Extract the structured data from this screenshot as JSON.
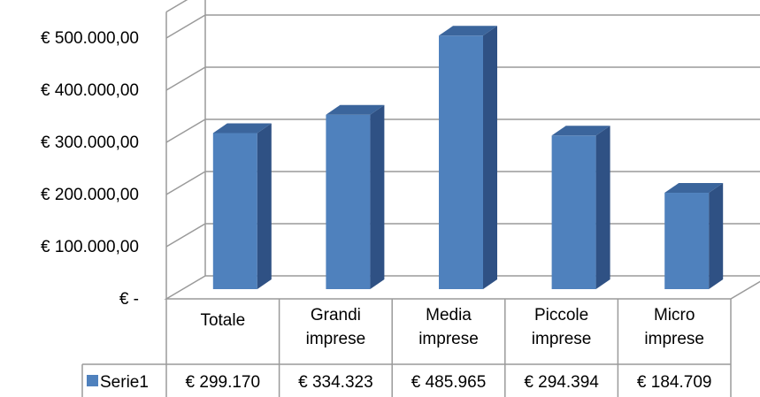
{
  "chart_data": {
    "type": "bar",
    "style": "3d-column",
    "categories": [
      "Totale",
      "Grandi\nimprese",
      "Media\nimprese",
      "Piccole\nimprese",
      "Micro\nimprese"
    ],
    "series": [
      {
        "name": "Serie1",
        "values": [
          299170,
          334323,
          485965,
          294394,
          184709
        ],
        "color": "#4F81BD"
      }
    ],
    "data_table": {
      "legend_label": "Serie1",
      "values": [
        "€ 299.170",
        "€ 334.323",
        "€ 485.965",
        "€ 294.394",
        "€ 184.709"
      ]
    },
    "y_ticks": [
      "€ -",
      "€ 100.000,00",
      "€ 200.000,00",
      "€ 300.000,00",
      "€ 400.000,00",
      "€ 500.000,00"
    ],
    "ylim": [
      0,
      500000
    ],
    "grid": true,
    "legend": "data-table"
  },
  "colors": {
    "bar_front": "#4F81BD",
    "bar_side": "#2F5184",
    "bar_top": "#3B659C",
    "grid": "#9a9a9a"
  }
}
